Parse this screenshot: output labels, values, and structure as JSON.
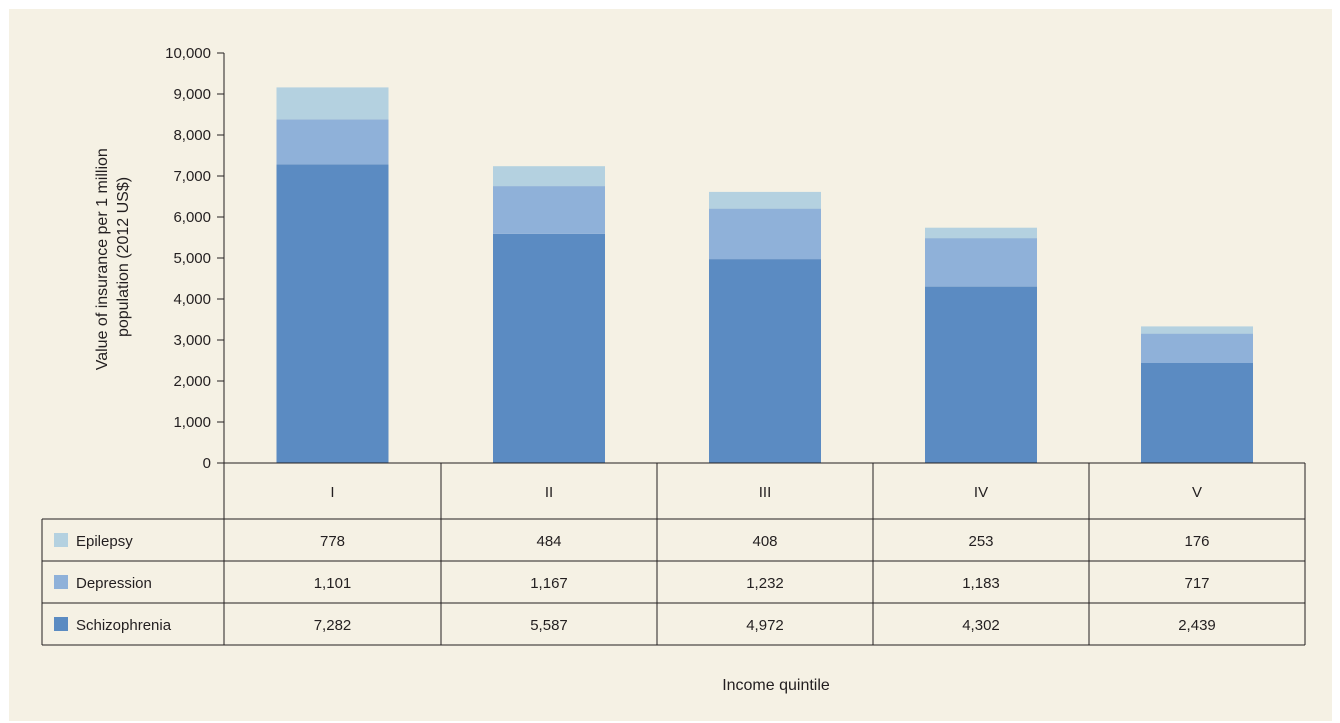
{
  "colors": {
    "panel_background": "#f5f1e4",
    "grid_line": "#231f20",
    "series": [
      "#5b8bc2",
      "#8fb1d9",
      "#b4d1e0"
    ]
  },
  "chart_data": {
    "type": "bar",
    "stacked": true,
    "categories": [
      "I",
      "II",
      "III",
      "IV",
      "V"
    ],
    "series": [
      {
        "name": "Schizophrenia",
        "values": [
          7282,
          5587,
          4972,
          4302,
          2439
        ],
        "color": "#5b8bc2"
      },
      {
        "name": "Depression",
        "values": [
          1101,
          1167,
          1232,
          1183,
          717
        ],
        "color": "#8fb1d9"
      },
      {
        "name": "Epilepsy",
        "values": [
          778,
          484,
          408,
          253,
          176
        ],
        "color": "#b4d1e0"
      }
    ],
    "table_rows": [
      {
        "name": "Epilepsy",
        "values": [
          "778",
          "484",
          "408",
          "253",
          "176"
        ],
        "color": "#b4d1e0"
      },
      {
        "name": "Depression",
        "values": [
          "1,101",
          "1,167",
          "1,232",
          "1,183",
          "717"
        ],
        "color": "#8fb1d9"
      },
      {
        "name": "Schizophrenia",
        "values": [
          "7,282",
          "5,587",
          "4,972",
          "4,302",
          "2,439"
        ],
        "color": "#5b8bc2"
      }
    ],
    "ylabel": [
      "Value of insurance per 1 million",
      "population (2012 US$)"
    ],
    "xlabel": "Income quintile",
    "ylim": [
      0,
      10000
    ],
    "yticks": [
      0,
      1000,
      2000,
      3000,
      4000,
      5000,
      6000,
      7000,
      8000,
      9000,
      10000
    ],
    "ytick_labels": [
      "0",
      "1,000",
      "2,000",
      "3,000",
      "4,000",
      "5,000",
      "6,000",
      "7,000",
      "8,000",
      "9,000",
      "10,000"
    ],
    "grid": false,
    "legend": "data-table"
  }
}
